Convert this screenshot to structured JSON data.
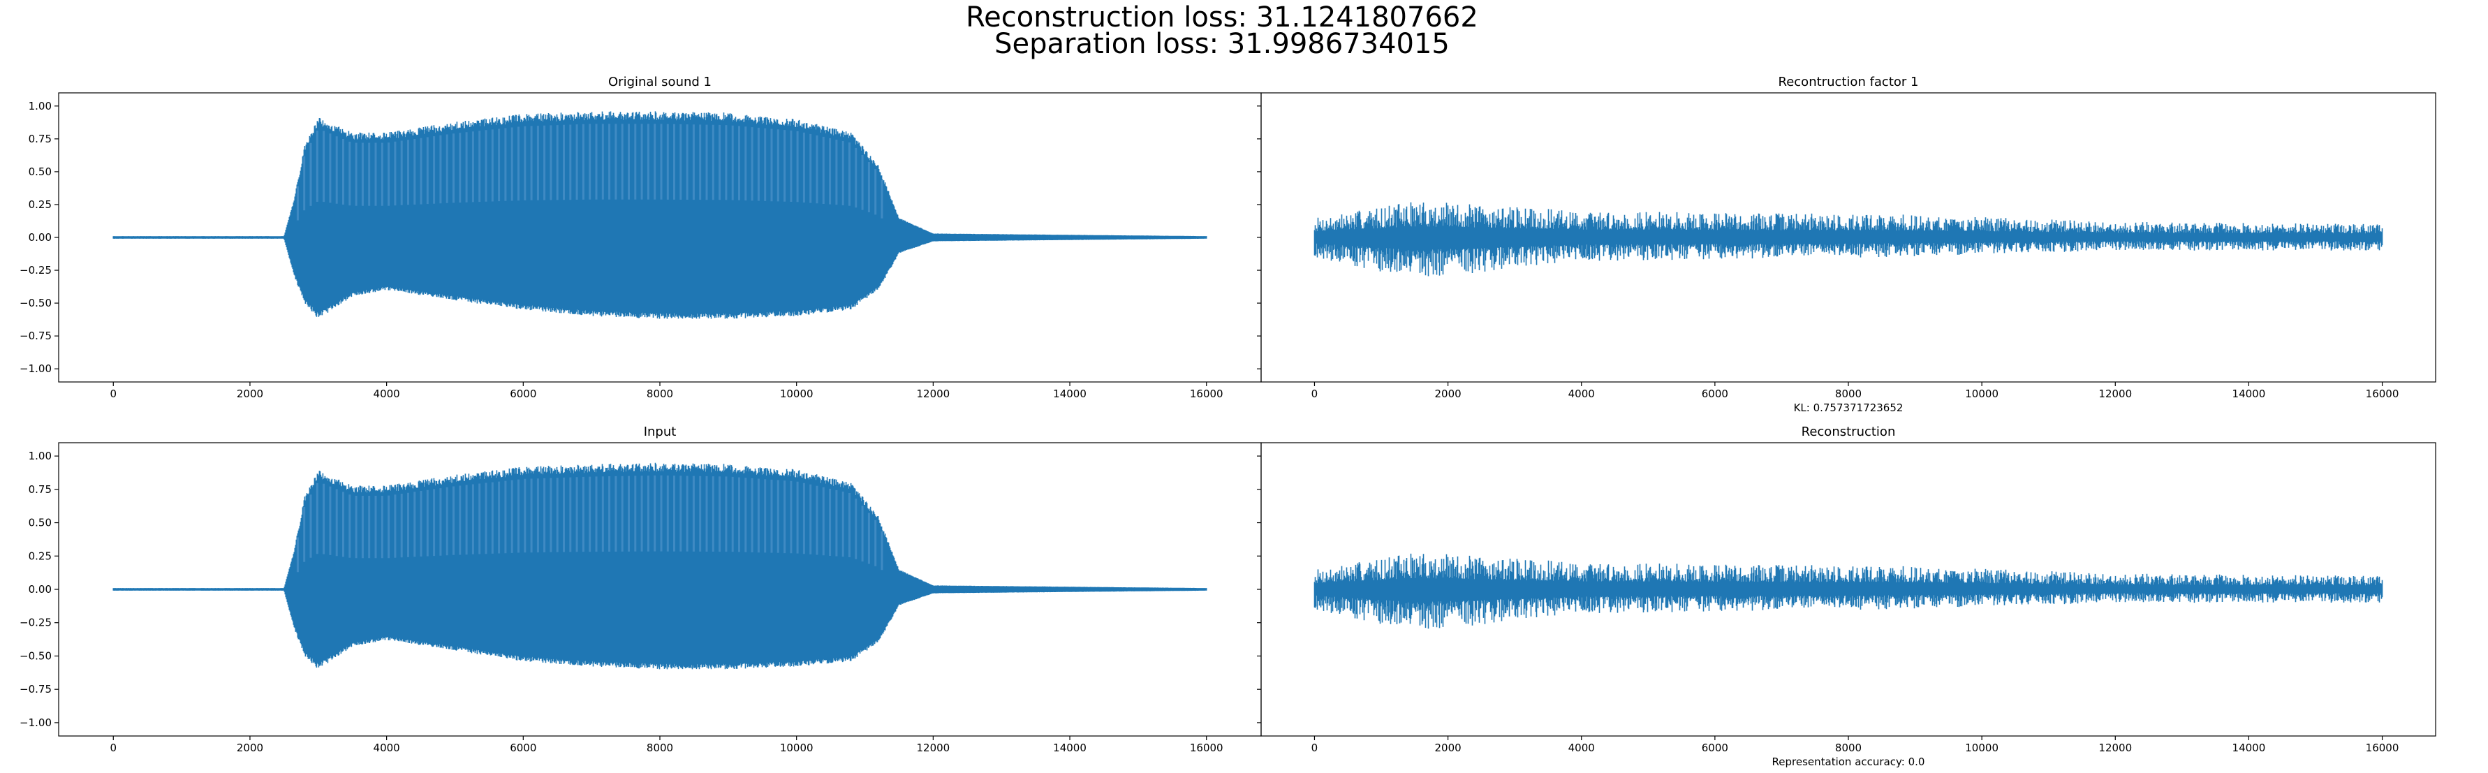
{
  "figure": {
    "suptitle_lines": [
      "Reconstruction loss: 31.1241807662",
      "Separation loss: 31.9986734015"
    ]
  },
  "colors": {
    "line": "#1f77b4",
    "axes": "#000000"
  },
  "chart_data": [
    {
      "type": "line",
      "title": "Original sound 1",
      "xlabel": "",
      "ylabel": "",
      "xlim": [
        -800,
        16800
      ],
      "ylim": [
        -1.1,
        1.1
      ],
      "xticks": [
        0,
        2000,
        4000,
        6000,
        8000,
        10000,
        12000,
        14000,
        16000
      ],
      "yticks": [
        -1.0,
        -0.75,
        -0.5,
        -0.25,
        0.0,
        0.25,
        0.5,
        0.75,
        1.0
      ],
      "ytick_labels": [
        "−1.00",
        "−0.75",
        "−0.50",
        "−0.25",
        "0.00",
        "0.25",
        "0.50",
        "0.75",
        "1.00"
      ],
      "show_yticklabels": true,
      "grid": false,
      "waveform": {
        "samples": 16000,
        "envelope": [
          {
            "x": 0,
            "upper": 0.01,
            "lower": -0.01
          },
          {
            "x": 2500,
            "upper": 0.01,
            "lower": -0.01
          },
          {
            "x": 2650,
            "upper": 0.3,
            "lower": -0.3
          },
          {
            "x": 2800,
            "upper": 0.7,
            "lower": -0.5
          },
          {
            "x": 3000,
            "upper": 0.92,
            "lower": -0.62
          },
          {
            "x": 3500,
            "upper": 0.8,
            "lower": -0.45
          },
          {
            "x": 4000,
            "upper": 0.8,
            "lower": -0.4
          },
          {
            "x": 5000,
            "upper": 0.88,
            "lower": -0.48
          },
          {
            "x": 6000,
            "upper": 0.94,
            "lower": -0.55
          },
          {
            "x": 7000,
            "upper": 0.96,
            "lower": -0.6
          },
          {
            "x": 8000,
            "upper": 0.96,
            "lower": -0.62
          },
          {
            "x": 9000,
            "upper": 0.95,
            "lower": -0.62
          },
          {
            "x": 10000,
            "upper": 0.9,
            "lower": -0.6
          },
          {
            "x": 10800,
            "upper": 0.8,
            "lower": -0.55
          },
          {
            "x": 11200,
            "upper": 0.55,
            "lower": -0.4
          },
          {
            "x": 11500,
            "upper": 0.15,
            "lower": -0.12
          },
          {
            "x": 12000,
            "upper": 0.03,
            "lower": -0.03
          },
          {
            "x": 16000,
            "upper": 0.01,
            "lower": -0.01
          }
        ]
      }
    },
    {
      "type": "line",
      "title": "Recontruction factor 1",
      "xlabel": "KL: 0.757371723652",
      "ylabel": "",
      "xlim": [
        -800,
        16800
      ],
      "ylim": [
        -1.1,
        1.1
      ],
      "xticks": [
        0,
        2000,
        4000,
        6000,
        8000,
        10000,
        12000,
        14000,
        16000
      ],
      "yticks": [
        -1.0,
        -0.75,
        -0.5,
        -0.25,
        0.0,
        0.25,
        0.5,
        0.75,
        1.0
      ],
      "show_yticklabels": false,
      "grid": false,
      "waveform": {
        "samples": 16000,
        "envelope": [
          {
            "x": 0,
            "upper": 0.15,
            "lower": -0.15
          },
          {
            "x": 1500,
            "upper": 0.28,
            "lower": -0.32
          },
          {
            "x": 4000,
            "upper": 0.2,
            "lower": -0.18
          },
          {
            "x": 8500,
            "upper": 0.18,
            "lower": -0.15
          },
          {
            "x": 12000,
            "upper": 0.12,
            "lower": -0.1
          },
          {
            "x": 16000,
            "upper": 0.1,
            "lower": -0.1
          }
        ]
      }
    },
    {
      "type": "line",
      "title": "Input",
      "xlabel": "",
      "ylabel": "",
      "xlim": [
        -800,
        16800
      ],
      "ylim": [
        -1.1,
        1.1
      ],
      "xticks": [
        0,
        2000,
        4000,
        6000,
        8000,
        10000,
        12000,
        14000,
        16000
      ],
      "yticks": [
        -1.0,
        -0.75,
        -0.5,
        -0.25,
        0.0,
        0.25,
        0.5,
        0.75,
        1.0
      ],
      "ytick_labels": [
        "−1.00",
        "−0.75",
        "−0.50",
        "−0.25",
        "0.00",
        "0.25",
        "0.50",
        "0.75",
        "1.00"
      ],
      "show_yticklabels": true,
      "grid": false,
      "waveform": {
        "samples": 16000,
        "envelope": [
          {
            "x": 0,
            "upper": 0.01,
            "lower": -0.01
          },
          {
            "x": 2500,
            "upper": 0.01,
            "lower": -0.01
          },
          {
            "x": 2650,
            "upper": 0.3,
            "lower": -0.3
          },
          {
            "x": 2800,
            "upper": 0.7,
            "lower": -0.5
          },
          {
            "x": 3000,
            "upper": 0.9,
            "lower": -0.6
          },
          {
            "x": 3500,
            "upper": 0.78,
            "lower": -0.43
          },
          {
            "x": 4000,
            "upper": 0.78,
            "lower": -0.38
          },
          {
            "x": 5000,
            "upper": 0.86,
            "lower": -0.46
          },
          {
            "x": 6000,
            "upper": 0.92,
            "lower": -0.54
          },
          {
            "x": 7000,
            "upper": 0.94,
            "lower": -0.58
          },
          {
            "x": 8000,
            "upper": 0.95,
            "lower": -0.6
          },
          {
            "x": 9000,
            "upper": 0.94,
            "lower": -0.6
          },
          {
            "x": 10000,
            "upper": 0.9,
            "lower": -0.58
          },
          {
            "x": 10800,
            "upper": 0.8,
            "lower": -0.54
          },
          {
            "x": 11200,
            "upper": 0.55,
            "lower": -0.4
          },
          {
            "x": 11500,
            "upper": 0.15,
            "lower": -0.12
          },
          {
            "x": 12000,
            "upper": 0.03,
            "lower": -0.03
          },
          {
            "x": 16000,
            "upper": 0.01,
            "lower": -0.01
          }
        ]
      }
    },
    {
      "type": "line",
      "title": "Reconstruction",
      "xlabel": "Representation accuracy: 0.0",
      "ylabel": "",
      "xlim": [
        -800,
        16800
      ],
      "ylim": [
        -1.1,
        1.1
      ],
      "xticks": [
        0,
        2000,
        4000,
        6000,
        8000,
        10000,
        12000,
        14000,
        16000
      ],
      "yticks": [
        -1.0,
        -0.75,
        -0.5,
        -0.25,
        0.0,
        0.25,
        0.5,
        0.75,
        1.0
      ],
      "show_yticklabels": false,
      "grid": false,
      "waveform": {
        "samples": 16000,
        "envelope": [
          {
            "x": 0,
            "upper": 0.15,
            "lower": -0.15
          },
          {
            "x": 1500,
            "upper": 0.28,
            "lower": -0.32
          },
          {
            "x": 4000,
            "upper": 0.2,
            "lower": -0.18
          },
          {
            "x": 8500,
            "upper": 0.18,
            "lower": -0.15
          },
          {
            "x": 12000,
            "upper": 0.12,
            "lower": -0.1
          },
          {
            "x": 16000,
            "upper": 0.1,
            "lower": -0.1
          }
        ]
      }
    }
  ]
}
